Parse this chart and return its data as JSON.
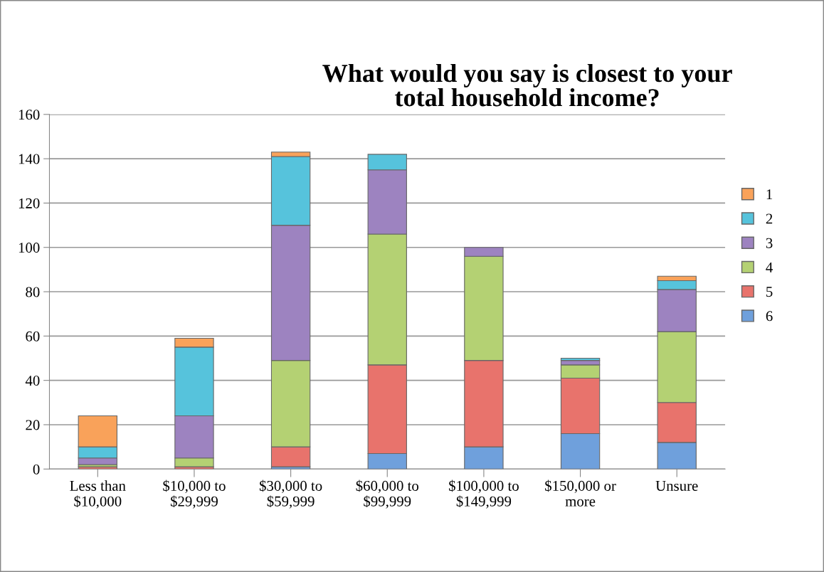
{
  "chart_data": {
    "type": "bar",
    "stacked": true,
    "title": "What would you say is closest to your\ntotal household income?",
    "categories": [
      "Less than\n$10,000",
      "$10,000 to\n$29,999",
      "$30,000 to\n$59,999",
      "$60,000 to\n$99,999",
      "$100,000 to\n$149,999",
      "$150,000 or\nmore",
      "Unsure"
    ],
    "series": [
      {
        "name": "6",
        "color": "#6fa0dc",
        "values": [
          0,
          0,
          1,
          7,
          10,
          16,
          12
        ]
      },
      {
        "name": "5",
        "color": "#e8736c",
        "values": [
          1,
          1,
          9,
          40,
          39,
          25,
          18
        ]
      },
      {
        "name": "4",
        "color": "#b4d173",
        "values": [
          1,
          4,
          39,
          59,
          47,
          6,
          32
        ]
      },
      {
        "name": "3",
        "color": "#9d83c0",
        "values": [
          3,
          19,
          61,
          29,
          4,
          2,
          19
        ]
      },
      {
        "name": "2",
        "color": "#56c3dc",
        "values": [
          5,
          31,
          31,
          7,
          0,
          1,
          4
        ]
      },
      {
        "name": "1",
        "color": "#f9a25a",
        "values": [
          14,
          4,
          2,
          0,
          0,
          0,
          2
        ]
      }
    ],
    "ylim": [
      0,
      160
    ],
    "yticks": [
      0,
      20,
      40,
      60,
      80,
      100,
      120,
      140,
      160
    ],
    "grid": "y",
    "legend": "right"
  }
}
